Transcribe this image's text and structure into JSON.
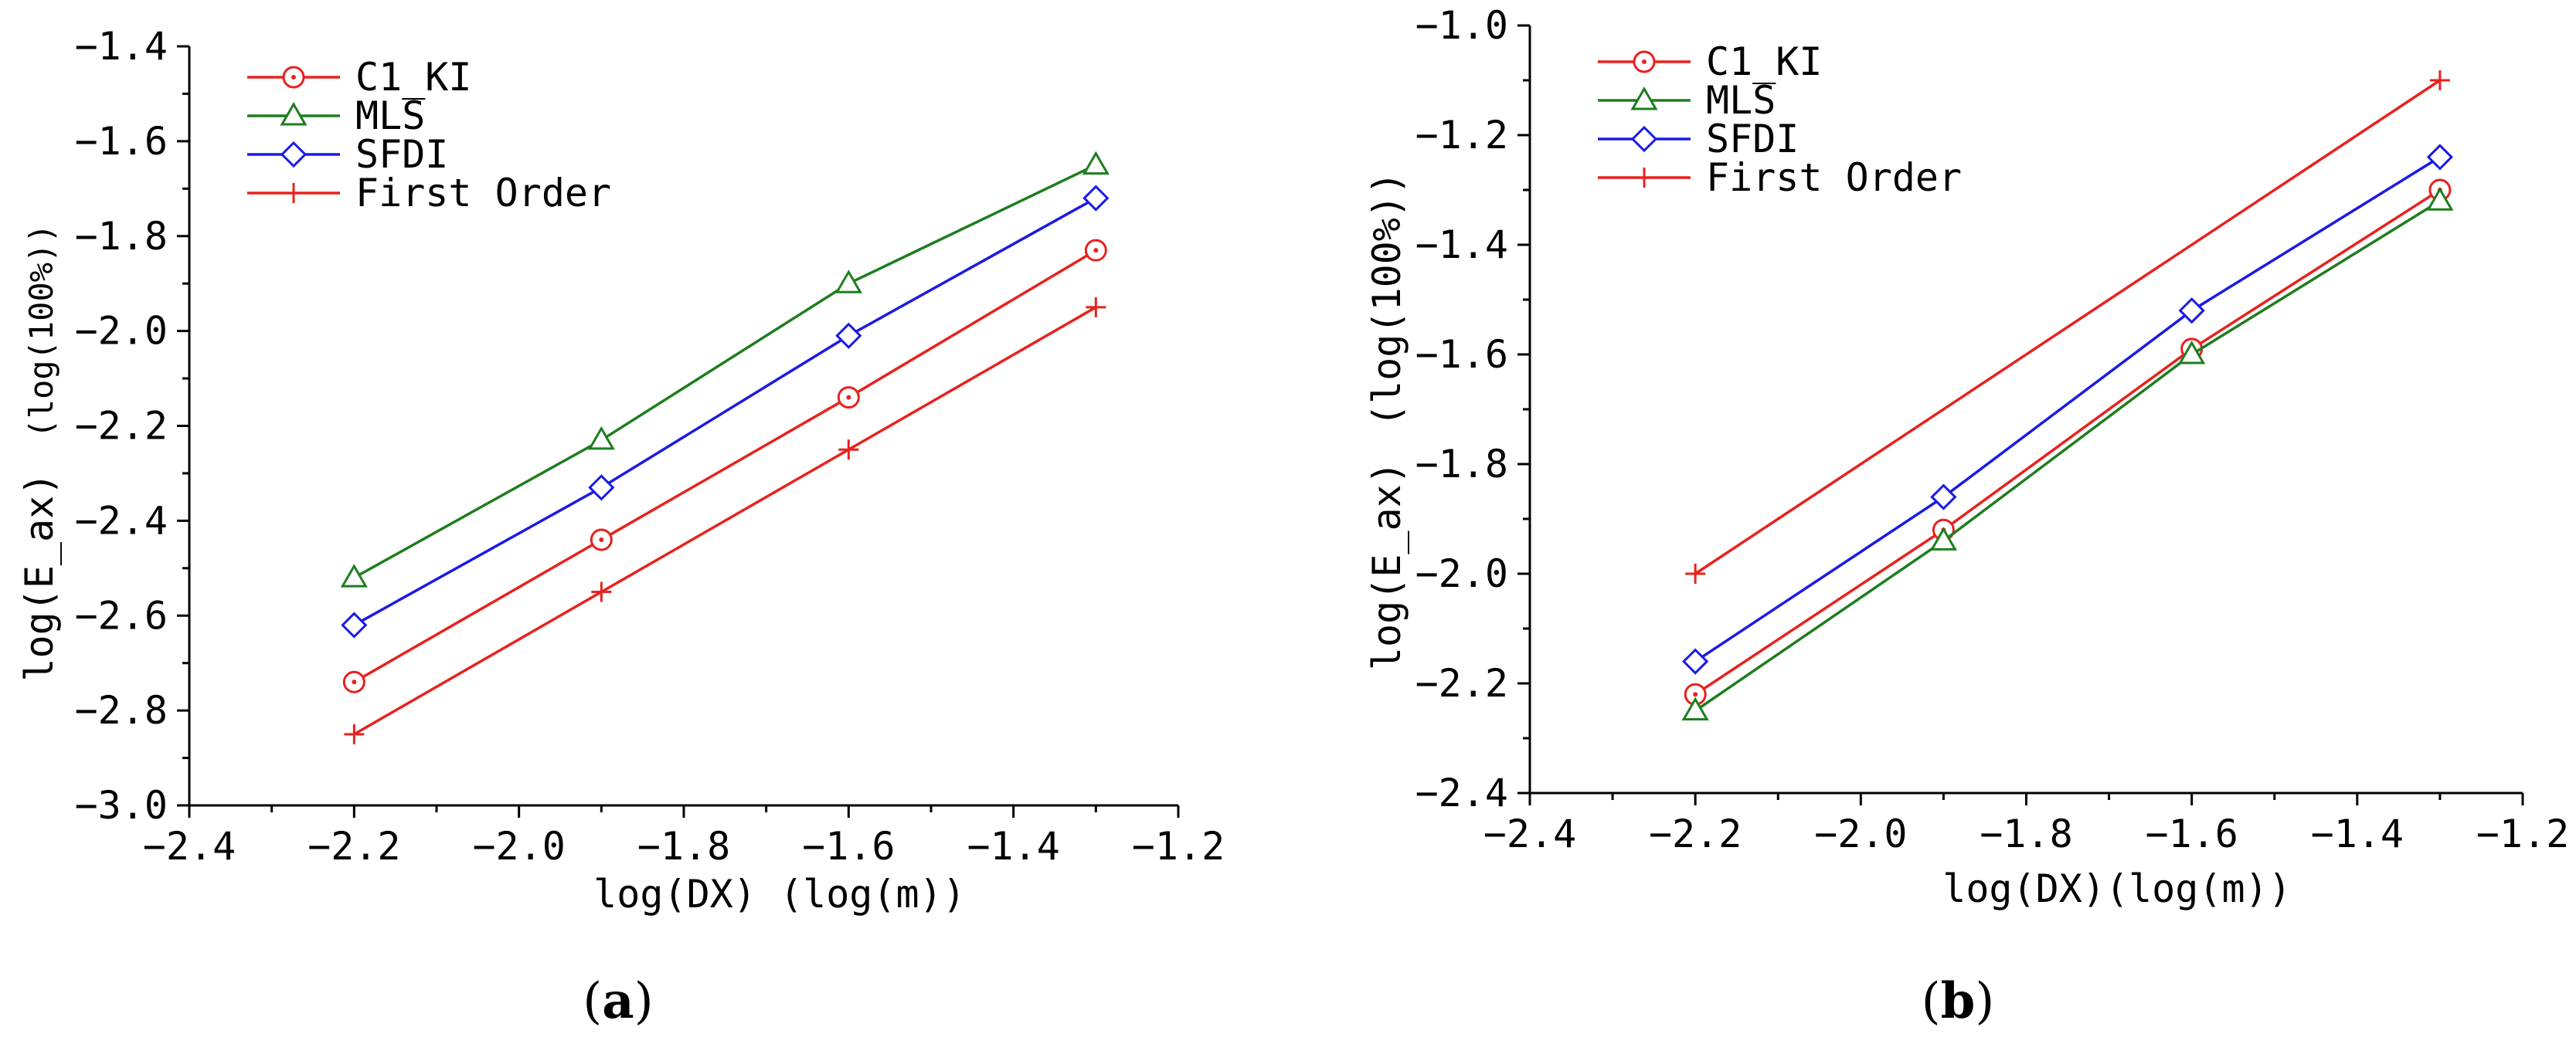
{
  "colors": {
    "C1_KI": "#e8211d",
    "MLS": "#1e7d1e",
    "SFDI": "#1a1ae6",
    "First Order": "#e8211d"
  },
  "chart_data": [
    {
      "type": "line",
      "caption": "a",
      "xlabel": "log(DX) (log(m))",
      "ylabel_main": "log(E_ax)",
      "ylabel_unit": "(log(100%))",
      "xlim": [
        -2.4,
        -1.2
      ],
      "ylim": [
        -3.0,
        -1.4
      ],
      "xticks": [
        -2.4,
        -2.2,
        -2.0,
        -1.8,
        -1.6,
        -1.4,
        -1.2
      ],
      "xtick_labels": [
        "−2.4",
        "−2.2",
        "−2.0",
        "−1.8",
        "−1.6",
        "−1.4",
        "−1.2"
      ],
      "yticks": [
        -3.0,
        -2.8,
        -2.6,
        -2.4,
        -2.2,
        -2.0,
        -1.8,
        -1.6,
        -1.4
      ],
      "ytick_labels": [
        "−3.0",
        "−2.8",
        "−2.6",
        "−2.4",
        "−2.2",
        "−2.0",
        "−1.8",
        "−1.6",
        "−1.4"
      ],
      "x": [
        -2.2,
        -1.9,
        -1.6,
        -1.3
      ],
      "series": [
        {
          "name": "C1_KI",
          "marker": "circle",
          "values": [
            -2.74,
            -2.44,
            -2.14,
            -1.83
          ]
        },
        {
          "name": "MLS",
          "marker": "triangle",
          "values": [
            -2.52,
            -2.23,
            -1.9,
            -1.65
          ]
        },
        {
          "name": "SFDI",
          "marker": "diamond",
          "values": [
            -2.62,
            -2.33,
            -2.01,
            -1.72
          ]
        },
        {
          "name": "First Order",
          "marker": "plus",
          "values": [
            -2.85,
            -2.55,
            -2.25,
            -1.95
          ]
        }
      ]
    },
    {
      "type": "line",
      "caption": "b",
      "xlabel": "log(DX)(log(m))",
      "ylabel_main": "log(E_ax)",
      "ylabel_unit": "(log(100%))",
      "xlim": [
        -2.4,
        -1.2
      ],
      "ylim": [
        -2.4,
        -1.0
      ],
      "xticks": [
        -2.4,
        -2.2,
        -2.0,
        -1.8,
        -1.6,
        -1.4,
        -1.2
      ],
      "xtick_labels": [
        "−2.4",
        "−2.2",
        "−2.0",
        "−1.8",
        "−1.6",
        "−1.4",
        "−1.2"
      ],
      "yticks": [
        -2.4,
        -2.2,
        -2.0,
        -1.8,
        -1.6,
        -1.4,
        -1.2,
        -1.0
      ],
      "ytick_labels": [
        "−2.4",
        "−2.2",
        "−2.0",
        "−1.8",
        "−1.6",
        "−1.4",
        "−1.2",
        "−1.0"
      ],
      "x": [
        -2.2,
        -1.9,
        -1.6,
        -1.3
      ],
      "series": [
        {
          "name": "C1_KI",
          "marker": "circle",
          "values": [
            -2.22,
            -1.92,
            -1.59,
            -1.3
          ]
        },
        {
          "name": "MLS",
          "marker": "triangle",
          "values": [
            -2.25,
            -1.94,
            -1.6,
            -1.32
          ]
        },
        {
          "name": "SFDI",
          "marker": "diamond",
          "values": [
            -2.16,
            -1.86,
            -1.52,
            -1.24
          ]
        },
        {
          "name": "First Order",
          "marker": "plus",
          "values": [
            -2.0,
            null,
            null,
            -1.1
          ]
        }
      ]
    }
  ]
}
